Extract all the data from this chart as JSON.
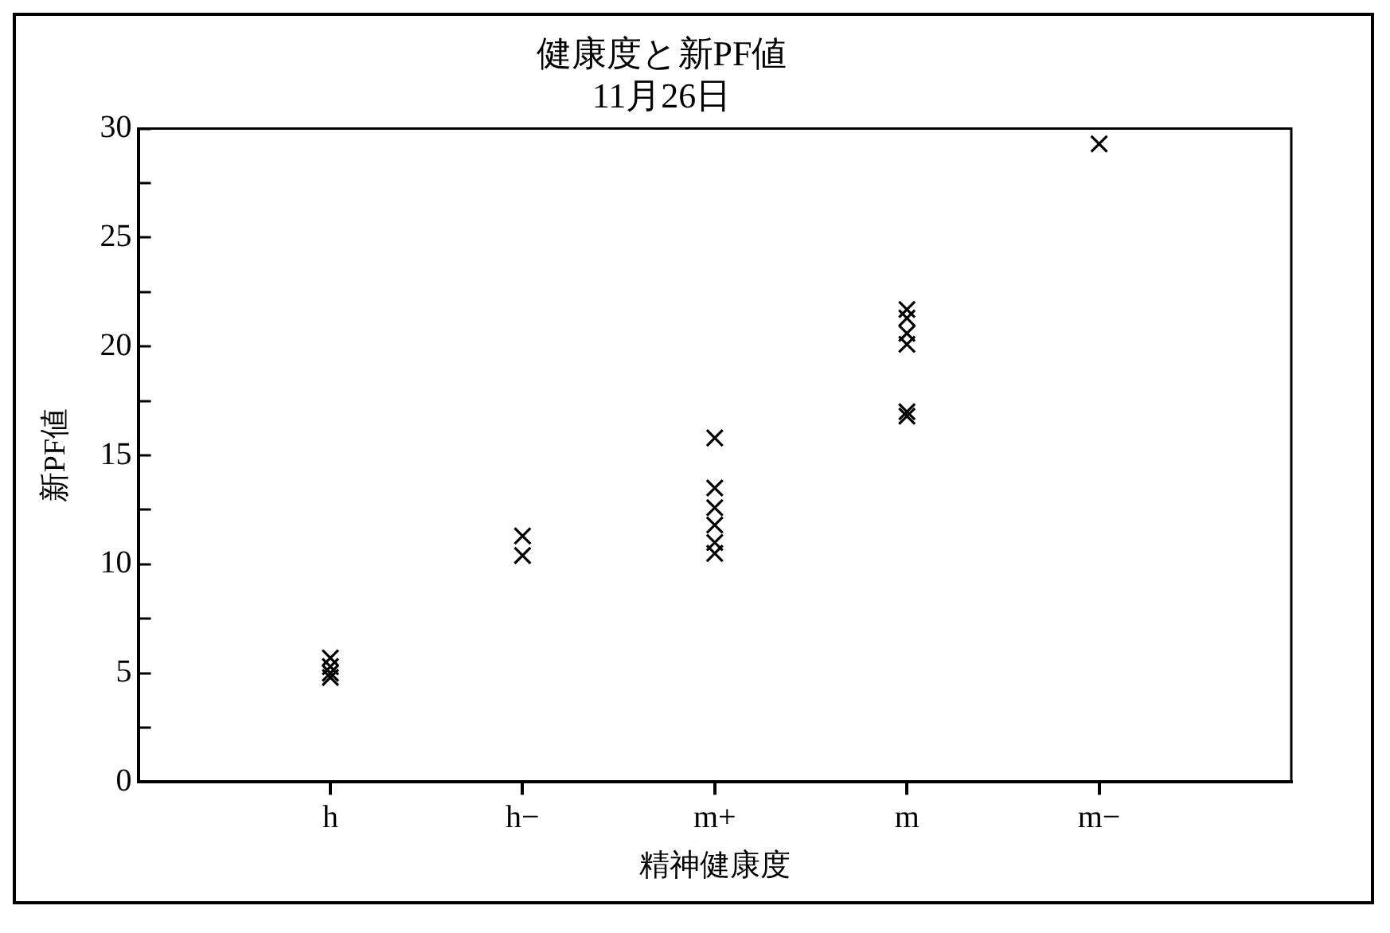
{
  "chart_data": {
    "type": "scatter",
    "title": "健康度と新PF値",
    "subtitle": "11月26日",
    "xlabel": "精神健康度",
    "ylabel": "新PF値",
    "categories": [
      "h",
      "h−",
      "m+",
      "m",
      "m−"
    ],
    "series": [
      {
        "color": "#000000",
        "x": [
          "h",
          "h",
          "h",
          "h",
          "h−",
          "h−",
          "m+",
          "m+",
          "m+",
          "m+",
          "m+",
          "m+",
          "m",
          "m",
          "m",
          "m",
          "m",
          "m",
          "m−"
        ],
        "values": [
          5.7,
          5.3,
          5.0,
          4.8,
          11.3,
          10.4,
          15.8,
          13.5,
          12.6,
          11.8,
          11.0,
          10.5,
          21.7,
          21.3,
          20.6,
          20.1,
          17.0,
          16.8,
          29.3
        ]
      }
    ],
    "ylim": [
      0,
      30
    ],
    "yticks": [
      0,
      {
        "value": 2.5,
        "label": null
      },
      5,
      {
        "value": 7.5,
        "label": null
      },
      10,
      {
        "value": 12.5,
        "label": null
      },
      15,
      {
        "value": 17.5,
        "label": null
      },
      20,
      {
        "value": 22.5,
        "label": null
      },
      25,
      {
        "value": 27.5,
        "label": null
      },
      30
    ],
    "marker": "cross",
    "grid": false,
    "legend": false
  }
}
